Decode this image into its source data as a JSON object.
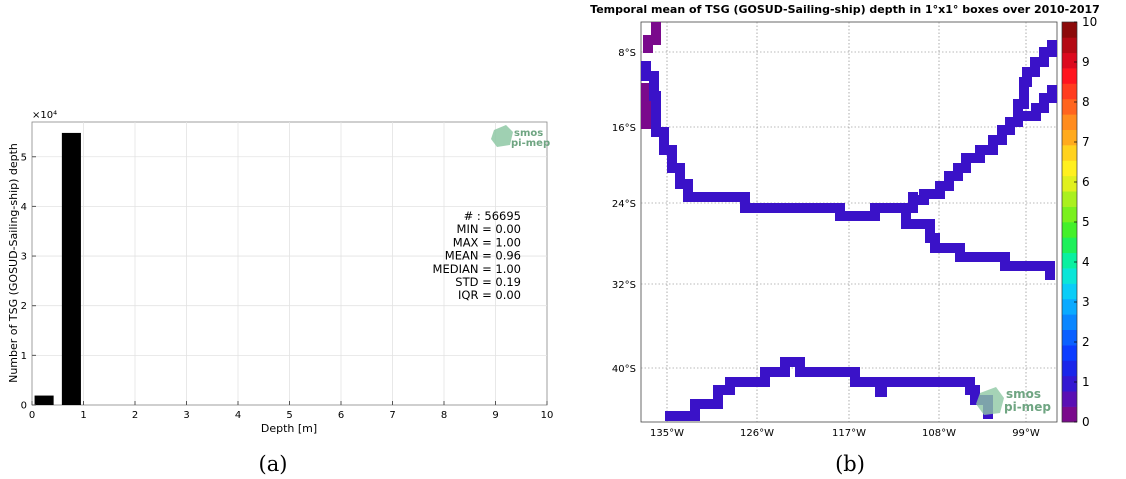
{
  "panel_a": {
    "caption": "(a)",
    "logo": {
      "line1": "smos",
      "line2": "pi-mep"
    },
    "stats": [
      "# : 56695",
      "MIN = 0.00",
      "MAX =  1.00",
      "MEAN = 0.96",
      "MEDIAN = 1.00",
      "STD = 0.19",
      "IQR = 0.00"
    ],
    "chart_data": {
      "type": "bar",
      "xlabel": "Depth [m]",
      "ylabel": "Number of TSG (GOSUD-Sailing-ship) depth",
      "y_multiplier": "×10⁴",
      "xlim": [
        0,
        10
      ],
      "ylim": [
        0,
        5.7
      ],
      "xticks": [
        0,
        1,
        2,
        3,
        4,
        5,
        6,
        7,
        8,
        9,
        10
      ],
      "yticks": [
        0,
        1,
        2,
        3,
        4,
        5
      ],
      "bars": [
        {
          "x0": 0.05,
          "x1": 0.42,
          "value": 0.19
        },
        {
          "x0": 0.58,
          "x1": 0.95,
          "value": 5.48
        }
      ],
      "grid": true
    }
  },
  "panel_b": {
    "caption": "(b)",
    "title": "Temporal mean of TSG (GOSUD-Sailing-ship) depth in 1°x1° boxes over 2010-2017",
    "logo": {
      "line1": "smos",
      "line2": "pi-mep"
    },
    "lat_labels": [
      "8°S",
      "16°S",
      "24°S",
      "32°S",
      "40°S"
    ],
    "lon_labels": [
      "135°W",
      "126°W",
      "117°W",
      "108°W",
      "99°W"
    ],
    "colorbar": {
      "ticks": [
        "0",
        "1",
        "2",
        "3",
        "4",
        "5",
        "6",
        "7",
        "8",
        "9",
        "10"
      ],
      "colors": [
        "#7a0a8c",
        "#5a0fb4",
        "#3418d2",
        "#1a26ea",
        "#0b3cff",
        "#0a60ff",
        "#0a86ff",
        "#0aaaff",
        "#0acdf8",
        "#0ae6d8",
        "#0af0a0",
        "#1ef05a",
        "#44f02a",
        "#7af01e",
        "#aaf01e",
        "#e0f01e",
        "#fff01e",
        "#ffd21e",
        "#ffaa1e",
        "#ff8c1e",
        "#ff641e",
        "#ff3c1e",
        "#ff141e",
        "#dc0a1e",
        "#b40a14",
        "#8c0a0a"
      ]
    },
    "track_color": "#3a12c8",
    "low_color": "#7a0a8c"
  }
}
